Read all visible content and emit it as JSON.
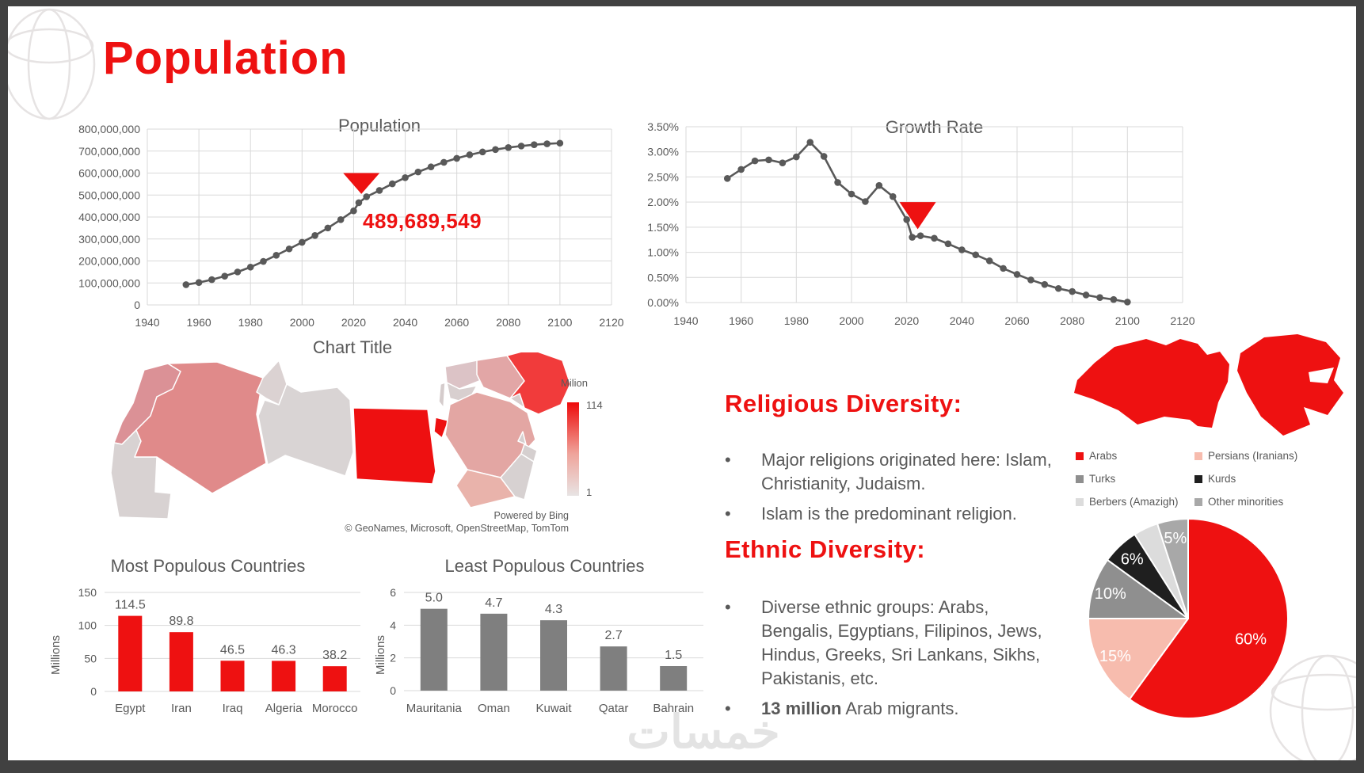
{
  "slide": {
    "title": "Population",
    "watermark": "خمسات",
    "colors": {
      "accent": "#ee1111",
      "text": "#595959",
      "grid": "#d9d9d9",
      "line": "#595959"
    }
  },
  "religious": {
    "heading": "Religious Diversity:",
    "bullets": [
      "Major religions originated here: Islam, Christianity, Judaism.",
      "Islam is the predominant religion."
    ]
  },
  "ethnic": {
    "heading": "Ethnic Diversity:",
    "bullets": [
      "Diverse ethnic groups: Arabs, Bengalis, Egyptians, Filipinos, Jews, Hindus, Greeks, Sri Lankans, Sikhs, Pakistanis, etc."
    ],
    "bullet2_bold": "13 million",
    "bullet2_rest": " Arab migrants."
  },
  "chart_data": [
    {
      "id": "population_line",
      "type": "line",
      "title": "Population",
      "xlim": [
        1940,
        2120
      ],
      "ylim": [
        0,
        800
      ],
      "xticks": [
        1940,
        1960,
        1980,
        2000,
        2020,
        2040,
        2060,
        2080,
        2100,
        2120
      ],
      "yticks": [
        {
          "label": "0",
          "v": 0
        },
        {
          "label": "100,000,000",
          "v": 100
        },
        {
          "label": "200,000,000",
          "v": 200
        },
        {
          "label": "300,000,000",
          "v": 300
        },
        {
          "label": "400,000,000",
          "v": 400
        },
        {
          "label": "500,000,000",
          "v": 500
        },
        {
          "label": "600,000,000",
          "v": 600
        },
        {
          "label": "700,000,000",
          "v": 700
        },
        {
          "label": "800,000,000",
          "v": 800
        }
      ],
      "x": [
        1955,
        1960,
        1965,
        1970,
        1975,
        1980,
        1985,
        1990,
        1995,
        2000,
        2005,
        2010,
        2015,
        2020,
        2022,
        2025,
        2030,
        2035,
        2040,
        2045,
        2050,
        2055,
        2060,
        2065,
        2070,
        2075,
        2080,
        2085,
        2090,
        2095,
        2100
      ],
      "values": [
        92,
        102,
        115,
        131,
        150,
        172,
        198,
        226,
        255,
        285,
        316,
        350,
        388,
        428,
        465,
        492,
        521,
        551,
        579,
        605,
        628,
        649,
        667,
        683,
        696,
        707,
        716,
        723,
        729,
        733,
        736
      ],
      "unit": "persons (values in millions)",
      "annotation": {
        "label": "489,689,549",
        "x": 2023,
        "top": 600,
        "tip": 505
      }
    },
    {
      "id": "growth_rate_line",
      "type": "line",
      "title": "Growth Rate",
      "xlim": [
        1940,
        2120
      ],
      "ylim": [
        0,
        3.5
      ],
      "xticks": [
        1940,
        1960,
        1980,
        2000,
        2020,
        2040,
        2060,
        2080,
        2100,
        2120
      ],
      "yticks": [
        {
          "label": "0.00%",
          "v": 0
        },
        {
          "label": "0.50%",
          "v": 0.5
        },
        {
          "label": "1.00%",
          "v": 1
        },
        {
          "label": "1.50%",
          "v": 1.5
        },
        {
          "label": "2.00%",
          "v": 2
        },
        {
          "label": "2.50%",
          "v": 2.5
        },
        {
          "label": "3.00%",
          "v": 3
        },
        {
          "label": "3.50%",
          "v": 3.5
        }
      ],
      "x": [
        1955,
        1960,
        1965,
        1970,
        1975,
        1980,
        1985,
        1990,
        1995,
        2000,
        2005,
        2010,
        2015,
        2020,
        2022,
        2025,
        2030,
        2035,
        2040,
        2045,
        2050,
        2055,
        2060,
        2065,
        2070,
        2075,
        2080,
        2085,
        2090,
        2095,
        2100
      ],
      "values": [
        2.47,
        2.65,
        2.82,
        2.84,
        2.78,
        2.9,
        3.19,
        2.91,
        2.39,
        2.16,
        2.01,
        2.33,
        2.11,
        1.65,
        1.3,
        1.33,
        1.28,
        1.17,
        1.05,
        0.95,
        0.83,
        0.68,
        0.56,
        0.45,
        0.36,
        0.28,
        0.22,
        0.15,
        0.1,
        0.06,
        0.01
      ],
      "unit": "percent",
      "annotation": {
        "label": "",
        "x": 2024,
        "top": 2.0,
        "tip": 1.46
      }
    },
    {
      "id": "mena_population_map",
      "type": "map",
      "title": "Chart Title",
      "legend": {
        "label": "Milion",
        "max": "114",
        "min": "1"
      },
      "attribution1": "Powered by Bing",
      "attribution2": "© GeoNames, Microsoft, OpenStreetMap, TomTom",
      "countries": {
        "Morocco": "#db9196",
        "Mauritania": "#d8d2d2",
        "Algeria": "#e08a8a",
        "Tunisia": "#dbd2d2",
        "Libya": "#d9d4d4",
        "Egypt": "#ee1011",
        "Sinai": "#ee1011",
        "Syria": "#dcc3c6",
        "Jordan": "#d8cfcf",
        "Lebanon": "#d5cccc",
        "Iraq": "#e2a6a6",
        "SaudiArabia": "#e3a6a3",
        "Yemen": "#e9b3ab",
        "Oman": "#d7d1d1",
        "UAE": "#d5cfcf",
        "Qatar": "#d6d0d0",
        "Kuwait": "#d8cccc",
        "Iran": "#f13b3b"
      }
    },
    {
      "id": "most_populous_bar",
      "type": "bar",
      "title": "Most Populous Countries",
      "ylabel": "Millions",
      "categories": [
        "Egypt",
        "Iran",
        "Iraq",
        "Algeria",
        "Morocco"
      ],
      "values": [
        114.5,
        89.8,
        46.5,
        46.3,
        38.2
      ],
      "labels": [
        "114.5",
        "89.8",
        "46.5",
        "46.3",
        "38.2"
      ],
      "yticks": [
        0,
        50,
        100,
        150
      ],
      "ylim": [
        0,
        150
      ],
      "color": "#ee1111"
    },
    {
      "id": "least_populous_bar",
      "type": "bar",
      "title": "Least Populous Countries",
      "ylabel": "Millions",
      "categories": [
        "Mauritania",
        "Oman",
        "Kuwait",
        "Qatar",
        "Bahrain"
      ],
      "values": [
        5.0,
        4.7,
        4.3,
        2.7,
        1.5
      ],
      "labels": [
        "5.0",
        "4.7",
        "4.3",
        "2.7",
        "1.5"
      ],
      "yticks": [
        0,
        2,
        4,
        6
      ],
      "ylim": [
        0,
        6
      ],
      "color": "#7f7f7f"
    },
    {
      "id": "ethnic_pie",
      "type": "pie",
      "series": [
        {
          "label": "Arabs",
          "value": 60,
          "color": "#ee1111",
          "text": "60%"
        },
        {
          "label": "Persians (Iranians)",
          "value": 15,
          "color": "#f7bcae",
          "text": "15%"
        },
        {
          "label": "Turks",
          "value": 10,
          "color": "#8f8f8f",
          "text": "10%"
        },
        {
          "label": "Kurds",
          "value": 6,
          "color": "#1f1f1f",
          "text": "6%"
        },
        {
          "label": "Berbers (Amazigh)",
          "value": 4,
          "color": "#dcdcdc",
          "text": ""
        },
        {
          "label": "Other minorities",
          "value": 5,
          "color": "#a8a8a8",
          "text": "5%"
        }
      ],
      "legend_position": "above"
    }
  ]
}
